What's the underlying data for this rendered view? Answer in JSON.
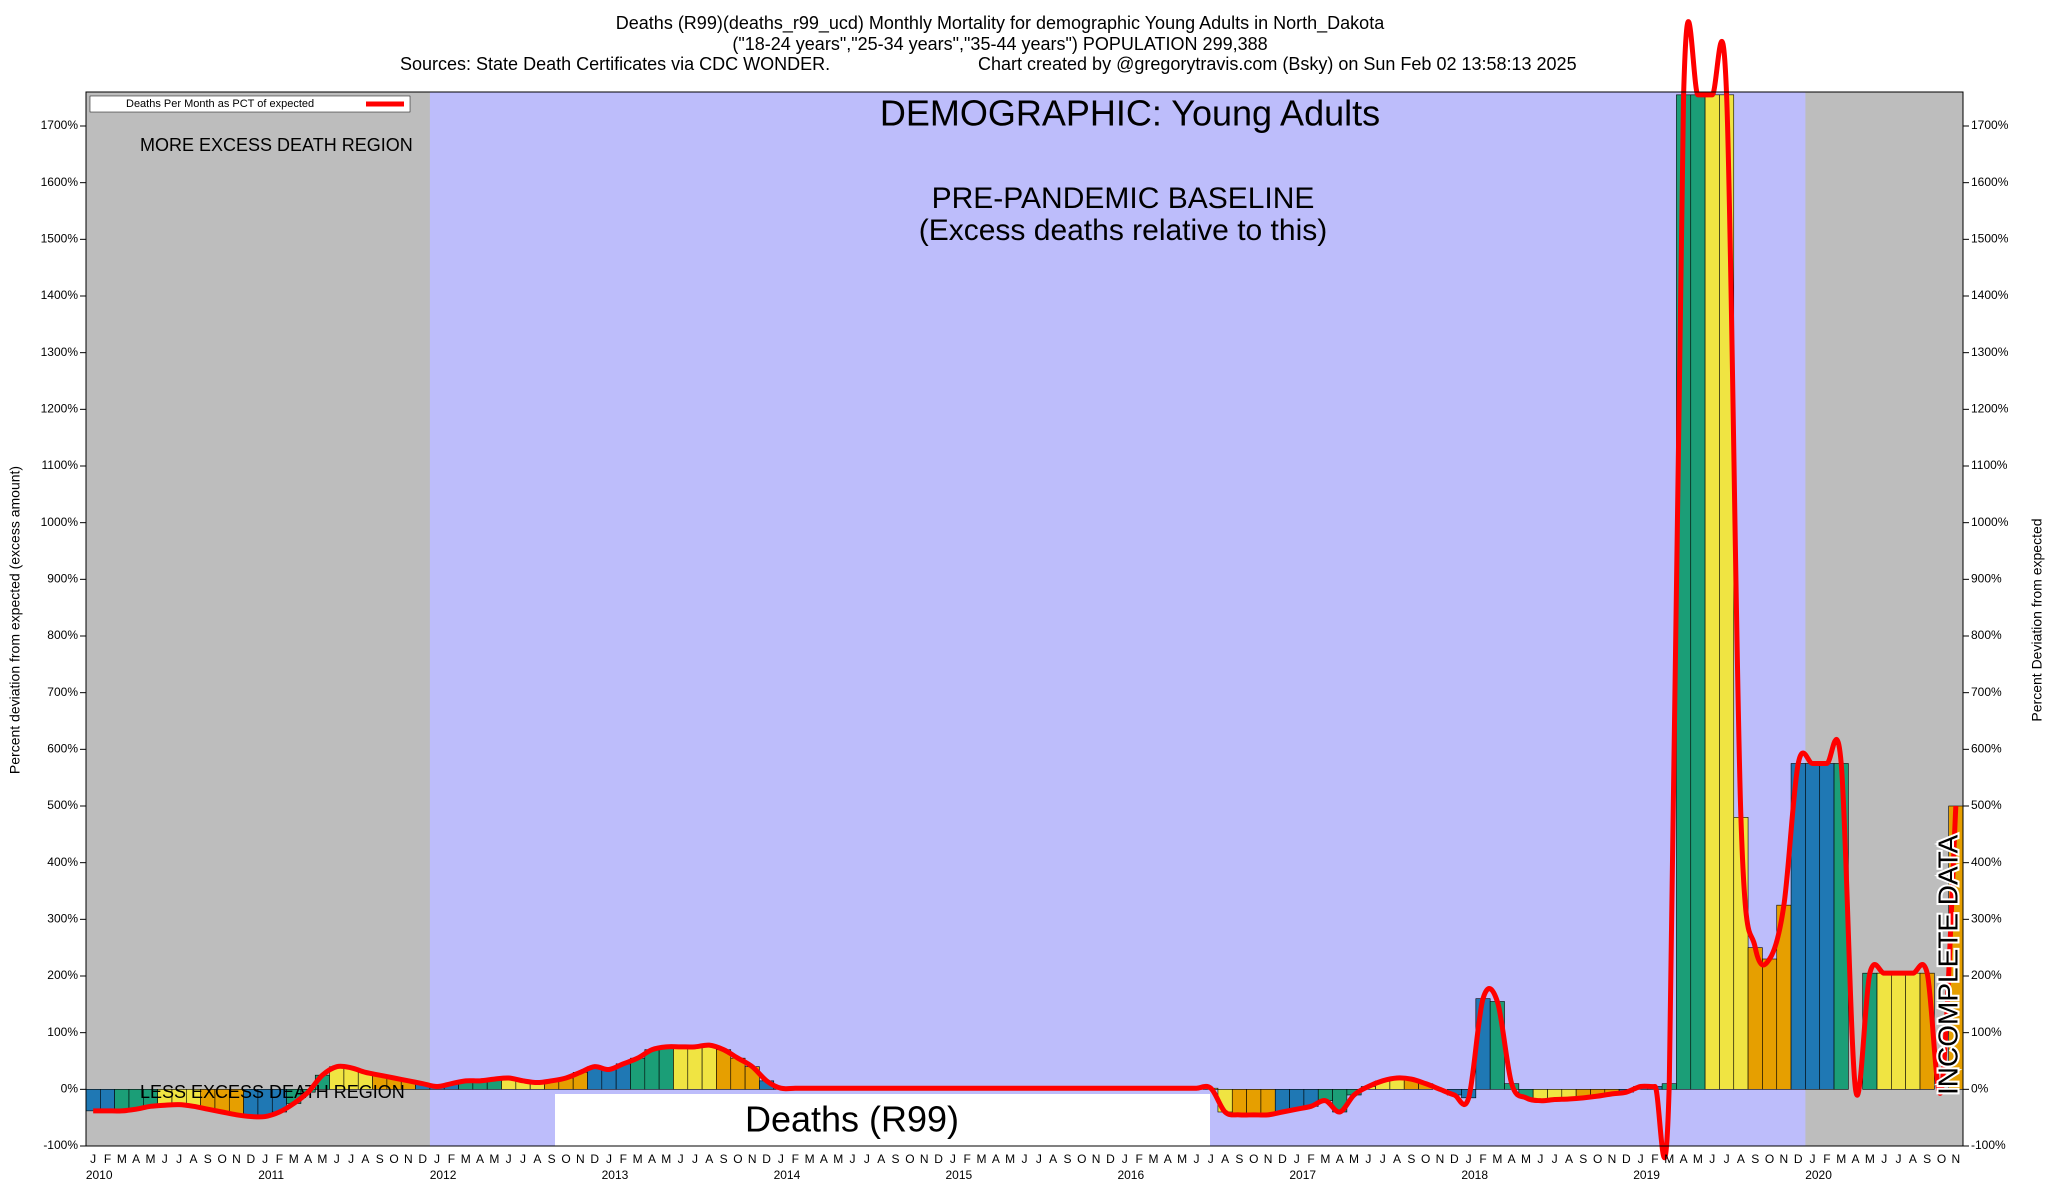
{
  "chart_data": {
    "type": "bar",
    "title": "Deaths (R99)(deaths_r99_ucd) Monthly Mortality for demographic Young Adults in North_Dakota",
    "subtitle": "(\"18-24 years\",\"25-34 years\",\"35-44 years\") POPULATION 299,388",
    "source": "Sources: State Death Certificates via CDC WONDER.",
    "credit": "Chart created by @gregorytravis.com (Bsky) on Sun Feb 02 13:58:13 2025",
    "y_label": "Percent deviation from expected (excess amount)",
    "y2_label": "Percent Deviation from expected",
    "annotations": [
      "DEMOGRAPHIC: Young Adults",
      "PRE-PANDEMIC BASELINE",
      "(Excess deaths relative to this)",
      "MORE EXCESS DEATH REGION",
      "LESS EXCESS DEATH REGION",
      "Deaths (R99)",
      "INCOMPLETE DATA"
    ],
    "years": [
      "2010",
      "2011",
      "2012",
      "2013",
      "2014",
      "2015",
      "2016",
      "2017",
      "2018",
      "2019",
      "2020"
    ],
    "baseline_range": [
      "2012",
      "2019"
    ],
    "categories": [
      "J",
      "F",
      "M",
      "A",
      "M",
      "J",
      "J",
      "A",
      "S",
      "O",
      "N",
      "D",
      "J",
      "F",
      "M",
      "A",
      "M",
      "J",
      "J",
      "A",
      "S",
      "O",
      "N",
      "D",
      "J",
      "F",
      "M",
      "A",
      "M",
      "J",
      "J",
      "A",
      "S",
      "O",
      "N",
      "D",
      "J",
      "F",
      "M",
      "A",
      "M",
      "J",
      "J",
      "A",
      "S",
      "O",
      "N",
      "D",
      "J",
      "F",
      "M",
      "A",
      "M",
      "J",
      "J",
      "A",
      "S",
      "O",
      "N",
      "D",
      "J",
      "F",
      "M",
      "A",
      "M",
      "J",
      "J",
      "A",
      "S",
      "O",
      "N",
      "D",
      "J",
      "F",
      "M",
      "A",
      "M",
      "J",
      "J",
      "A",
      "S",
      "O",
      "N",
      "D",
      "J",
      "F",
      "M",
      "A",
      "M",
      "J",
      "J",
      "A",
      "S",
      "O",
      "N",
      "D",
      "J",
      "F",
      "M",
      "A",
      "M",
      "J",
      "J",
      "A",
      "S",
      "O",
      "N",
      "D",
      "J",
      "F",
      "M",
      "A",
      "M",
      "J",
      "J",
      "A",
      "S",
      "O",
      "N",
      "D",
      "J",
      "F",
      "M",
      "A",
      "M",
      "J",
      "J",
      "A",
      "S",
      "O",
      "N"
    ],
    "series": [
      {
        "name": "Deaths Per Month as PCT of expected",
        "color": "#ff0000",
        "values": [
          -38,
          -38,
          -38,
          -35,
          -30,
          -28,
          -27,
          -30,
          -35,
          -40,
          -45,
          -48,
          -48,
          -40,
          -25,
          -5,
          25,
          40,
          38,
          30,
          25,
          20,
          15,
          10,
          5,
          10,
          15,
          15,
          18,
          20,
          15,
          12,
          15,
          20,
          30,
          40,
          35,
          45,
          55,
          70,
          75,
          75,
          75,
          78,
          70,
          55,
          40,
          15,
          2,
          2,
          2,
          2,
          2,
          2,
          2,
          2,
          2,
          2,
          2,
          2,
          2,
          2,
          2,
          2,
          2,
          2,
          2,
          2,
          2,
          2,
          2,
          2,
          2,
          2,
          2,
          2,
          2,
          2,
          2,
          -40,
          -45,
          -45,
          -45,
          -40,
          -35,
          -30,
          -20,
          -40,
          -10,
          5,
          15,
          20,
          18,
          10,
          0,
          -10,
          -15,
          160,
          155,
          10,
          -15,
          -20,
          -18,
          -17,
          -15,
          -12,
          -8,
          -5,
          5,
          5,
          10,
          1755,
          1755,
          1755,
          1755,
          480,
          250,
          230,
          325,
          575,
          575,
          575,
          575,
          0,
          205,
          205,
          205,
          205,
          205,
          0,
          500
        ]
      }
    ],
    "season_colors": [
      "#1f78b4",
      "#1b9e77",
      "#f0e442",
      "#e69f00"
    ],
    "ylim": [
      -100,
      1760
    ],
    "yticks": [
      {
        "value": -100,
        "label": "-100%"
      },
      {
        "value": 0,
        "label": "0%"
      },
      {
        "value": 100,
        "label": "100%"
      },
      {
        "value": 200,
        "label": "200%"
      },
      {
        "value": 300,
        "label": "300%"
      },
      {
        "value": 400,
        "label": "400%"
      },
      {
        "value": 500,
        "label": "500%"
      },
      {
        "value": 600,
        "label": "600%"
      },
      {
        "value": 700,
        "label": "700%"
      },
      {
        "value": 800,
        "label": "800%"
      },
      {
        "value": 900,
        "label": "900%"
      },
      {
        "value": 1000,
        "label": "1000%"
      },
      {
        "value": 1100,
        "label": "1100%"
      },
      {
        "value": 1200,
        "label": "1200%"
      },
      {
        "value": 1300,
        "label": "1300%"
      },
      {
        "value": 1400,
        "label": "1400%"
      },
      {
        "value": 1500,
        "label": "1500%"
      },
      {
        "value": 1600,
        "label": "1600%"
      },
      {
        "value": 1700,
        "label": "1700%"
      }
    ]
  }
}
